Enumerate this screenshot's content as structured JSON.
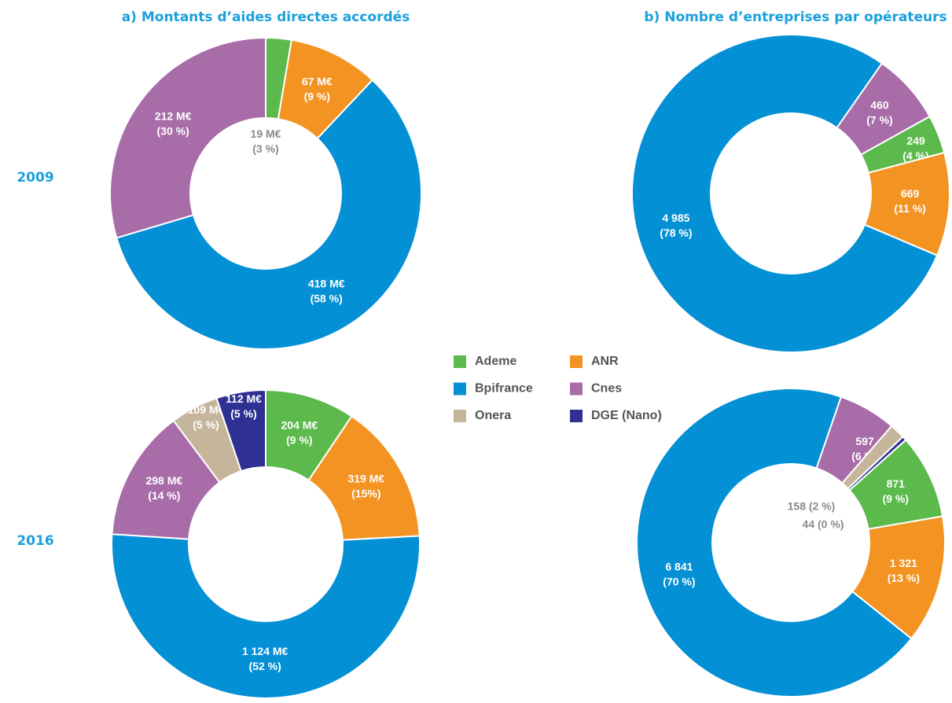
{
  "titles": [
    "a) Montants d’aides directes accordés",
    "b) Nombre d’entreprises par opérateurs"
  ],
  "years": [
    "2009",
    "2016"
  ],
  "legend": {
    "labels": [
      "Ademe",
      "ANR",
      "Bpifrance",
      "Cnes",
      "Onera",
      "DGE (Nano)"
    ],
    "colors": [
      "#5cb94c",
      "#f39322",
      "#0490d4",
      "#a86ca8",
      "#c5b59b",
      "#2e3192"
    ]
  },
  "chart_data": [
    {
      "type": "pie",
      "categories": [
        "Ademe",
        "ANR",
        "Bpifrance",
        "Cnes"
      ],
      "values": [
        19,
        67,
        418,
        212
      ],
      "value_labels": [
        [
          "19 M€",
          "(3 %)"
        ],
        [
          "67 M€",
          "(9 %)"
        ],
        [
          "418 M€",
          "(58 %)"
        ],
        [
          "212 M€",
          "(30 %)"
        ]
      ],
      "colors": [
        "#5cb94c",
        "#f39322",
        "#0490d4",
        "#a86ca8"
      ]
    },
    {
      "type": "pie",
      "categories": [
        "Cnes",
        "Ademe",
        "ANR",
        "Bpifrance"
      ],
      "values": [
        460,
        249,
        669,
        4985
      ],
      "value_labels": [
        [
          "460",
          "(7 %)"
        ],
        [
          "249",
          "(4 %)"
        ],
        [
          "669",
          "(11 %)"
        ],
        [
          "4 985",
          "(78 %)"
        ]
      ],
      "colors": [
        "#a86ca8",
        "#5cb94c",
        "#f39322",
        "#0490d4"
      ]
    },
    {
      "type": "pie",
      "categories": [
        "Ademe",
        "ANR",
        "Bpifrance",
        "Cnes",
        "Onera",
        "DGE (Nano)"
      ],
      "values": [
        204,
        319,
        1124,
        298,
        109,
        112
      ],
      "value_labels": [
        [
          "204 M€",
          "(9 %)"
        ],
        [
          "319  M€",
          "(15%)"
        ],
        [
          "1 124 M€",
          "(52 %)"
        ],
        [
          "298 M€",
          "(14 %)"
        ],
        [
          "109 M€",
          "(5 %)"
        ],
        [
          "112 M€",
          "(5 %)"
        ]
      ],
      "colors": [
        "#5cb94c",
        "#f39322",
        "#0490d4",
        "#a86ca8",
        "#c5b59b",
        "#2e3192"
      ]
    },
    {
      "type": "pie",
      "categories": [
        "Cnes",
        "Onera",
        "DGE (Nano)",
        "Ademe",
        "ANR",
        "Bpifrance"
      ],
      "values": [
        597,
        158,
        44,
        871,
        1321,
        6841
      ],
      "value_labels": [
        [
          "597",
          "(6 %)"
        ],
        "158 (2 %)",
        "44 (0 %)",
        [
          "871",
          "(9 %)"
        ],
        [
          "1 321",
          "(13 %)"
        ],
        [
          "6 841",
          "(70 %)"
        ]
      ],
      "colors": [
        "#a86ca8",
        "#c5b59b",
        "#2e3192",
        "#5cb94c",
        "#f39322",
        "#0490d4"
      ]
    }
  ]
}
